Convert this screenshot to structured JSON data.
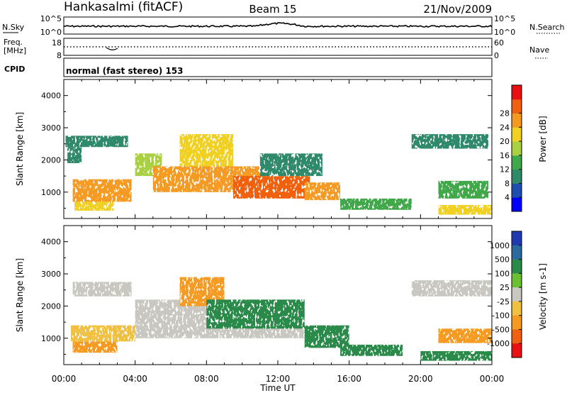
{
  "header": {
    "station": "Hankasalmi (fitACF)",
    "beam": "Beam 15",
    "date": "21/Nov/2009"
  },
  "top_panels": {
    "nsky_label": "N.Sky",
    "nsky_ticks": [
      "10^5",
      "10^0"
    ],
    "nsearch_label": "N.Search",
    "nsearch_ticks": [
      "10^5",
      "10^0"
    ],
    "freq_label_1": "Freq.",
    "freq_label_2": "[MHz]",
    "freq_ticks": [
      "18",
      "8"
    ],
    "nave_label": "Nave",
    "nave_ticks": [
      "60",
      "0"
    ],
    "cpid_label": "CPID",
    "cpid_text": "normal (fast stereo) 153"
  },
  "chart_data": [
    {
      "type": "heatmap",
      "name": "power",
      "ylabel": "Slant Range [km]",
      "xlabel": "Time UT",
      "xlim": [
        0,
        24
      ],
      "ylim": [
        180,
        4500
      ],
      "xticks": [
        "00:00",
        "04:00",
        "08:00",
        "12:00",
        "16:00",
        "20:00",
        "00:00"
      ],
      "yticks": [
        1000,
        2000,
        3000,
        4000
      ],
      "colorbar": {
        "label": "Power [dB]",
        "ticks": [
          4,
          8,
          12,
          16,
          20,
          24,
          28
        ],
        "colors": [
          "#0000ff",
          "#1e4fb0",
          "#2f8a6a",
          "#3fa84a",
          "#a8d040",
          "#f0d020",
          "#f59a20",
          "#f06010",
          "#e81010"
        ]
      },
      "regions": [
        {
          "x0": 0.1,
          "x1": 3.6,
          "y0": 2400,
          "y1": 2750,
          "level": 8
        },
        {
          "x0": 0.2,
          "x1": 1.0,
          "y0": 1900,
          "y1": 2400,
          "level": 8
        },
        {
          "x0": 0.5,
          "x1": 3.8,
          "y0": 700,
          "y1": 1400,
          "level": 26
        },
        {
          "x0": 0.6,
          "x1": 2.8,
          "y0": 420,
          "y1": 700,
          "level": 22
        },
        {
          "x0": 4.0,
          "x1": 5.5,
          "y0": 1500,
          "y1": 2200,
          "level": 16
        },
        {
          "x0": 5.0,
          "x1": 11.0,
          "y0": 1000,
          "y1": 1800,
          "level": 26
        },
        {
          "x0": 6.5,
          "x1": 9.5,
          "y0": 1800,
          "y1": 2800,
          "level": 22
        },
        {
          "x0": 9.5,
          "x1": 13.8,
          "y0": 800,
          "y1": 1500,
          "level": 28
        },
        {
          "x0": 11.0,
          "x1": 14.5,
          "y0": 1500,
          "y1": 2200,
          "level": 8
        },
        {
          "x0": 13.5,
          "x1": 15.5,
          "y0": 750,
          "y1": 1300,
          "level": 24
        },
        {
          "x0": 15.5,
          "x1": 19.5,
          "y0": 450,
          "y1": 800,
          "level": 14
        },
        {
          "x0": 19.5,
          "x1": 23.8,
          "y0": 2350,
          "y1": 2800,
          "level": 8
        },
        {
          "x0": 21.0,
          "x1": 23.8,
          "y0": 800,
          "y1": 1350,
          "level": 14
        },
        {
          "x0": 21.0,
          "x1": 24.0,
          "y0": 300,
          "y1": 600,
          "level": 22
        }
      ]
    },
    {
      "type": "heatmap",
      "name": "velocity",
      "ylabel": "Slant Range [km]",
      "xlabel": "Time UT",
      "xlim": [
        0,
        24
      ],
      "ylim": [
        180,
        4500
      ],
      "xticks": [
        "00:00",
        "04:00",
        "08:00",
        "12:00",
        "16:00",
        "20:00",
        "00:00"
      ],
      "yticks": [
        1000,
        2000,
        3000,
        4000
      ],
      "colorbar": {
        "label": "Velocity [m s-1]",
        "ticks": [
          1000,
          500,
          100,
          25,
          -25,
          -100,
          -500,
          -1000
        ],
        "colors": [
          "#1e3cb0",
          "#2a6aa0",
          "#2a8a4a",
          "#6ac030",
          "#c8c8c0",
          "#f0c040",
          "#f59a20",
          "#f06010",
          "#e81010"
        ]
      },
      "regions": [
        {
          "x0": 0.5,
          "x1": 3.8,
          "y0": 2300,
          "y1": 2750,
          "value": 0
        },
        {
          "x0": 0.4,
          "x1": 4.0,
          "y0": 900,
          "y1": 1400,
          "value": -100
        },
        {
          "x0": 0.5,
          "x1": 3.0,
          "y0": 550,
          "y1": 900,
          "value": -300
        },
        {
          "x0": 4.0,
          "x1": 13.5,
          "y0": 1000,
          "y1": 2200,
          "value": 0
        },
        {
          "x0": 6.5,
          "x1": 9.0,
          "y0": 2000,
          "y1": 2900,
          "value": -400
        },
        {
          "x0": 8.0,
          "x1": 13.5,
          "y0": 1300,
          "y1": 2200,
          "value": 200
        },
        {
          "x0": 13.5,
          "x1": 16.0,
          "y0": 700,
          "y1": 1400,
          "value": 150
        },
        {
          "x0": 15.5,
          "x1": 19.0,
          "y0": 450,
          "y1": 800,
          "value": 150
        },
        {
          "x0": 19.5,
          "x1": 24.0,
          "y0": 2300,
          "y1": 2800,
          "value": 0
        },
        {
          "x0": 21.0,
          "x1": 24.0,
          "y0": 850,
          "y1": 1300,
          "value": -300
        },
        {
          "x0": 20.0,
          "x1": 24.0,
          "y0": 300,
          "y1": 600,
          "value": 300
        }
      ]
    }
  ]
}
